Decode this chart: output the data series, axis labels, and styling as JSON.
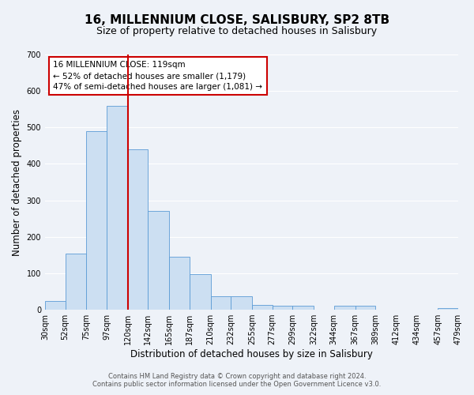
{
  "title": "16, MILLENNIUM CLOSE, SALISBURY, SP2 8TB",
  "subtitle": "Size of property relative to detached houses in Salisbury",
  "xlabel": "Distribution of detached houses by size in Salisbury",
  "ylabel": "Number of detached properties",
  "bar_left_edges": [
    30,
    52,
    75,
    97,
    120,
    142,
    165,
    187,
    210,
    232,
    255,
    277,
    299,
    322,
    344,
    367,
    389,
    412,
    434,
    457
  ],
  "bar_heights": [
    25,
    155,
    490,
    560,
    440,
    272,
    145,
    97,
    37,
    37,
    14,
    12,
    12,
    0,
    10,
    10,
    0,
    0,
    0,
    5
  ],
  "bar_widths": [
    22,
    23,
    22,
    23,
    22,
    23,
    22,
    23,
    22,
    23,
    22,
    22,
    23,
    22,
    23,
    22,
    23,
    22,
    23,
    22
  ],
  "x_tick_labels": [
    "30sqm",
    "52sqm",
    "75sqm",
    "97sqm",
    "120sqm",
    "142sqm",
    "165sqm",
    "187sqm",
    "210sqm",
    "232sqm",
    "255sqm",
    "277sqm",
    "299sqm",
    "322sqm",
    "344sqm",
    "367sqm",
    "389sqm",
    "412sqm",
    "434sqm",
    "457sqm",
    "479sqm"
  ],
  "bar_color": "#ccdff2",
  "bar_edge_color": "#5b9bd5",
  "vline_x": 120,
  "vline_color": "#cc0000",
  "ylim": [
    0,
    700
  ],
  "yticks": [
    0,
    100,
    200,
    300,
    400,
    500,
    600,
    700
  ],
  "annotation_title": "16 MILLENNIUM CLOSE: 119sqm",
  "annotation_line1": "← 52% of detached houses are smaller (1,179)",
  "annotation_line2": "47% of semi-detached houses are larger (1,081) →",
  "annotation_box_color": "#ffffff",
  "annotation_box_edge_color": "#cc0000",
  "footer_line1": "Contains HM Land Registry data © Crown copyright and database right 2024.",
  "footer_line2": "Contains public sector information licensed under the Open Government Licence v3.0.",
  "background_color": "#eef2f8",
  "grid_color": "#ffffff",
  "title_fontsize": 11,
  "subtitle_fontsize": 9,
  "axis_label_fontsize": 8.5,
  "tick_fontsize": 7,
  "footer_fontsize": 6,
  "ann_fontsize": 7.5
}
